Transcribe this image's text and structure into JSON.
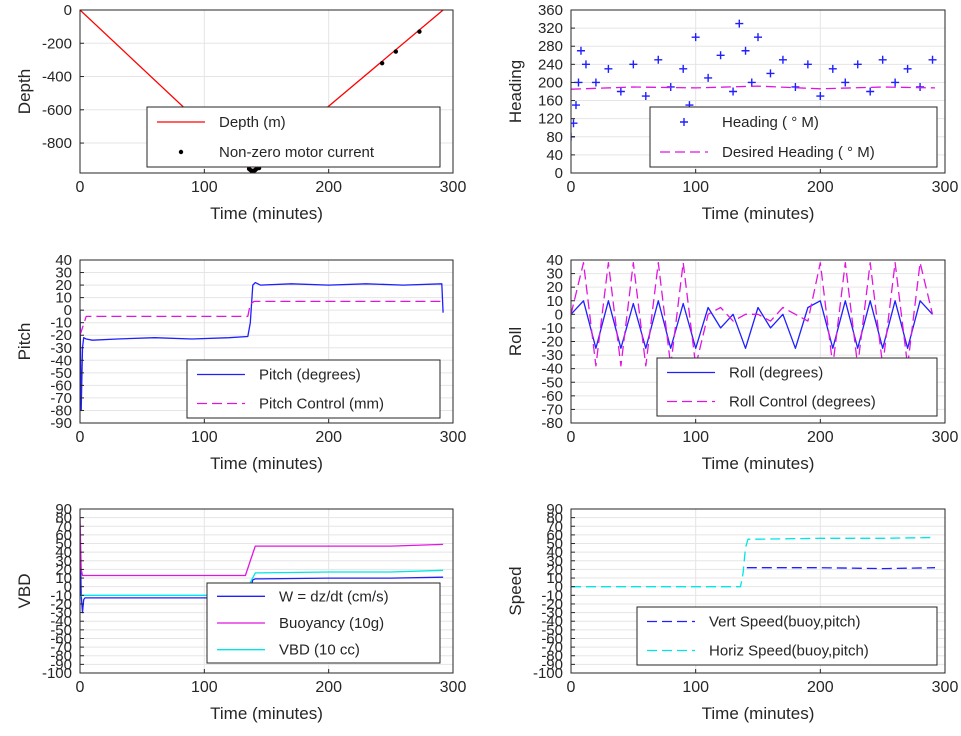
{
  "figure": {
    "background": "#ffffff",
    "grid_color": "#e5e5e5",
    "axis_color": "#262626"
  },
  "chart_data": [
    {
      "id": "depth",
      "type": "line",
      "xlabel": "Time (minutes)",
      "ylabel": "Depth",
      "xlim": [
        0,
        300
      ],
      "ylim": [
        -980,
        0
      ],
      "xticks": [
        0,
        100,
        200,
        300
      ],
      "yticks": [
        0,
        -200,
        -400,
        -600,
        -800
      ],
      "grid": true,
      "legend": "bottom-right",
      "series": [
        {
          "name": "Depth (m)",
          "style": "solid",
          "color": "#ff0000",
          "x": [
            0,
            138,
            292
          ],
          "y": [
            0,
            -968,
            0
          ]
        },
        {
          "name": "Non-zero motor current",
          "style": "dot",
          "color": "#000000",
          "x": [
            136,
            137,
            138,
            139,
            140,
            141,
            142,
            144,
            243,
            254,
            273
          ],
          "y": [
            -955,
            -962,
            -966,
            -968,
            -966,
            -962,
            -955,
            -950,
            -320,
            -250,
            -130
          ]
        }
      ]
    },
    {
      "id": "heading",
      "type": "line",
      "xlabel": "Time (minutes)",
      "ylabel": "Heading",
      "xlim": [
        0,
        300
      ],
      "ylim": [
        0,
        360
      ],
      "xticks": [
        0,
        100,
        200,
        300
      ],
      "yticks": [
        0,
        40,
        80,
        120,
        160,
        200,
        240,
        280,
        320,
        360
      ],
      "grid": true,
      "legend": "bottom-right",
      "series": [
        {
          "name": "Heading (  ° M)",
          "style": "plus",
          "color": "#1f1fff",
          "x": [
            0,
            2,
            4,
            6,
            8,
            12,
            20,
            30,
            40,
            50,
            60,
            70,
            80,
            90,
            95,
            100,
            110,
            120,
            130,
            135,
            140,
            145,
            150,
            160,
            170,
            180,
            190,
            200,
            210,
            220,
            230,
            240,
            250,
            260,
            270,
            280,
            290
          ],
          "y": [
            80,
            110,
            150,
            200,
            270,
            240,
            200,
            230,
            180,
            240,
            170,
            250,
            190,
            230,
            150,
            300,
            210,
            260,
            180,
            330,
            270,
            200,
            300,
            220,
            250,
            190,
            240,
            170,
            230,
            200,
            240,
            180,
            250,
            200,
            230,
            190,
            250
          ]
        },
        {
          "name": "Desired Heading (     ° M)",
          "style": "dash",
          "color": "#e016e0",
          "x": [
            0,
            50,
            100,
            150,
            200,
            250,
            292
          ],
          "y": [
            185,
            190,
            188,
            192,
            186,
            190,
            188
          ]
        }
      ]
    },
    {
      "id": "pitch",
      "type": "line",
      "xlabel": "Time (minutes)",
      "ylabel": "Pitch",
      "xlim": [
        0,
        300
      ],
      "ylim": [
        -90,
        40
      ],
      "xticks": [
        0,
        100,
        200,
        300
      ],
      "yticks": [
        40,
        30,
        20,
        10,
        0,
        -10,
        -20,
        -30,
        -40,
        -50,
        -60,
        -70,
        -80,
        -90
      ],
      "grid": true,
      "legend": "bottom-right",
      "series": [
        {
          "name": "Pitch (degrees)",
          "style": "solid",
          "color": "#1f1fff",
          "x": [
            0,
            1,
            2,
            3,
            5,
            10,
            30,
            60,
            90,
            120,
            135,
            137,
            139,
            141,
            145,
            170,
            200,
            230,
            260,
            291,
            292
          ],
          "y": [
            0,
            -80,
            -30,
            -22,
            -23,
            -24,
            -23,
            -22,
            -23,
            -22,
            -21,
            -10,
            20,
            22,
            20,
            21,
            20,
            21,
            20,
            21,
            -2
          ]
        },
        {
          "name": "Pitch Control (mm)",
          "style": "dash",
          "color": "#e016e0",
          "x": [
            0,
            5,
            10,
            135,
            137,
            140,
            292
          ],
          "y": [
            -20,
            -5,
            -5,
            -5,
            5,
            7,
            7
          ]
        }
      ]
    },
    {
      "id": "roll",
      "type": "line",
      "xlabel": "Time (minutes)",
      "ylabel": "Roll",
      "xlim": [
        0,
        300
      ],
      "ylim": [
        -80,
        40
      ],
      "xticks": [
        0,
        100,
        200,
        300
      ],
      "yticks": [
        40,
        30,
        20,
        10,
        0,
        -10,
        -20,
        -30,
        -40,
        -50,
        -60,
        -70,
        -80
      ],
      "grid": true,
      "legend": "bottom-right",
      "series": [
        {
          "name": "Roll (degrees)",
          "style": "solid",
          "color": "#1f1fff",
          "x": [
            0,
            10,
            20,
            30,
            40,
            50,
            60,
            70,
            80,
            90,
            100,
            110,
            120,
            130,
            140,
            150,
            160,
            170,
            180,
            190,
            200,
            210,
            220,
            230,
            240,
            250,
            260,
            270,
            280,
            290
          ],
          "y": [
            0,
            10,
            -25,
            10,
            -25,
            8,
            -25,
            10,
            -25,
            8,
            -25,
            5,
            -10,
            0,
            -25,
            5,
            -10,
            0,
            -25,
            5,
            10,
            -25,
            10,
            -25,
            10,
            -25,
            10,
            -25,
            10,
            0
          ]
        },
        {
          "name": "Roll Control (degrees)",
          "style": "dash",
          "color": "#e016e0",
          "x": [
            0,
            10,
            20,
            30,
            40,
            50,
            60,
            70,
            80,
            90,
            100,
            110,
            120,
            130,
            140,
            150,
            160,
            170,
            180,
            190,
            200,
            210,
            220,
            230,
            240,
            250,
            260,
            270,
            280,
            290
          ],
          "y": [
            0,
            38,
            -38,
            38,
            -38,
            38,
            -38,
            38,
            -38,
            38,
            -38,
            0,
            5,
            -5,
            0,
            0,
            -5,
            5,
            0,
            -5,
            38,
            -38,
            38,
            -38,
            38,
            -38,
            38,
            -38,
            38,
            0
          ]
        }
      ]
    },
    {
      "id": "vbd",
      "type": "line",
      "xlabel": "Time (minutes)",
      "ylabel": "VBD",
      "xlim": [
        0,
        300
      ],
      "ylim": [
        -100,
        90
      ],
      "xticks": [
        0,
        100,
        200,
        300
      ],
      "yticks": [
        90,
        80,
        70,
        60,
        50,
        40,
        30,
        20,
        10,
        0,
        -10,
        -20,
        -30,
        -40,
        -50,
        -60,
        -70,
        -80,
        -90,
        -100
      ],
      "grid": true,
      "legend": "bottom-right",
      "series": [
        {
          "name": "W = dz/dt (cm/s)",
          "style": "solid",
          "color": "#1f1fff",
          "x": [
            0,
            1,
            2,
            3,
            4,
            10,
            50,
            100,
            130,
            135,
            137,
            139,
            141,
            145,
            200,
            250,
            292
          ],
          "y": [
            70,
            -10,
            -30,
            -15,
            -13,
            -13,
            -13,
            -13,
            -13,
            -12,
            -3,
            8,
            9,
            9,
            10,
            10,
            11
          ]
        },
        {
          "name": "Buoyancy (10g)",
          "style": "solid",
          "color": "#e016e0",
          "x": [
            0,
            1,
            2,
            3,
            10,
            50,
            100,
            133,
            137,
            141,
            145,
            200,
            250,
            292
          ],
          "y": [
            80,
            20,
            13,
            13,
            13,
            13,
            13,
            13,
            30,
            47,
            47,
            47,
            47,
            49
          ]
        },
        {
          "name": "VBD (10 cc)",
          "style": "solid",
          "color": "#00e5e5",
          "x": [
            0,
            1,
            3,
            10,
            50,
            100,
            133,
            137,
            141,
            145,
            200,
            250,
            292
          ],
          "y": [
            -14,
            -10,
            -10,
            -10,
            -10,
            -10,
            -10,
            5,
            16,
            16,
            17,
            17,
            19
          ]
        }
      ]
    },
    {
      "id": "speed",
      "type": "line",
      "xlabel": "Time (minutes)",
      "ylabel": "Speed",
      "xlim": [
        0,
        300
      ],
      "ylim": [
        -100,
        90
      ],
      "xticks": [
        0,
        100,
        200,
        300
      ],
      "yticks": [
        90,
        80,
        70,
        60,
        50,
        40,
        30,
        20,
        10,
        0,
        -10,
        -20,
        -30,
        -40,
        -50,
        -60,
        -70,
        -80,
        -90,
        -100
      ],
      "grid": true,
      "legend": "bottom-right",
      "series": [
        {
          "name": "Vert Speed(buoy,pitch)",
          "style": "dash",
          "color": "#1f1fff",
          "x": [
            141,
            145,
            200,
            250,
            292
          ],
          "y": [
            22,
            22,
            22,
            21,
            22
          ]
        },
        {
          "name": "Horiz Speed(buoy,pitch)",
          "style": "dash",
          "color": "#00e5e5",
          "x": [
            0,
            50,
            100,
            136,
            138,
            140,
            142,
            150,
            200,
            250,
            292
          ],
          "y": [
            0,
            0,
            0,
            0,
            15,
            45,
            55,
            55,
            56,
            56,
            57
          ]
        }
      ]
    }
  ]
}
